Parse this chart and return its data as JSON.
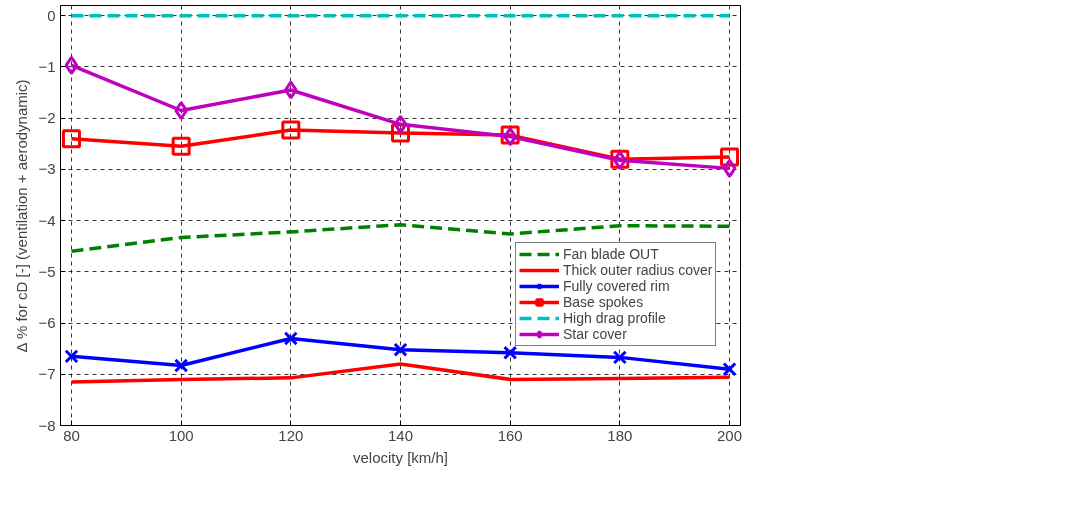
{
  "chart_data": {
    "type": "line",
    "xlabel": "velocity [km/h]",
    "ylabel": "Δ % for cD [-] (ventilation + aerodynamic)",
    "x": [
      80,
      100,
      120,
      140,
      160,
      180,
      200
    ],
    "xlim": [
      78,
      202
    ],
    "xticks": [
      80,
      100,
      120,
      140,
      160,
      180,
      200
    ],
    "ylim": [
      -8,
      0.2
    ],
    "yticks": [
      -8,
      -7,
      -6,
      -5,
      -4,
      -3,
      -2,
      -1,
      0
    ],
    "grid": true,
    "legend": "right",
    "series": [
      {
        "name": "Fan blade OUT",
        "color": "#008000",
        "line_style": "dashed",
        "marker": "none",
        "values": [
          -4.6,
          -4.33,
          -4.22,
          -4.08,
          -4.26,
          -4.1,
          -4.11
        ]
      },
      {
        "name": "Thick outer radius cover",
        "color": "#ff0000",
        "line_style": "solid",
        "marker": "none",
        "values": [
          -7.15,
          -7.1,
          -7.07,
          -6.8,
          -7.1,
          -7.08,
          -7.06
        ]
      },
      {
        "name": "Fully covered rim",
        "color": "#0000ff",
        "line_style": "solid",
        "marker": "cross",
        "values": [
          -6.65,
          -6.83,
          -6.3,
          -6.52,
          -6.58,
          -6.67,
          -6.9
        ]
      },
      {
        "name": "Base spokes",
        "color": "#ff0000",
        "line_style": "solid",
        "marker": "square",
        "values": [
          -2.4,
          -2.55,
          -2.23,
          -2.29,
          -2.33,
          -2.8,
          -2.76
        ]
      },
      {
        "name": "High drag profile",
        "color": "#00bfbf",
        "line_style": "dashed",
        "marker": "none",
        "values": [
          0,
          0,
          0,
          0,
          0,
          0,
          0
        ]
      },
      {
        "name": "Star cover",
        "color": "#bf00bf",
        "line_style": "solid",
        "marker": "diamond",
        "values": [
          -0.97,
          -1.85,
          -1.45,
          -2.12,
          -2.36,
          -2.82,
          -2.98
        ]
      }
    ]
  }
}
